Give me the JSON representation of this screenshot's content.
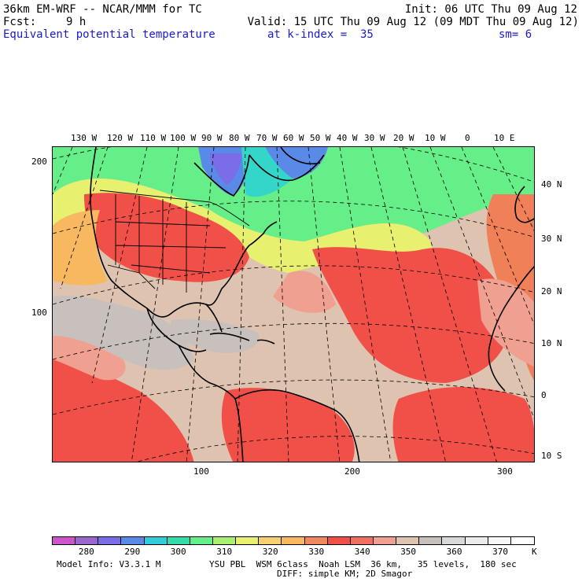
{
  "header": {
    "model": "36km EM-WRF -- NCAR/MMM for TC",
    "init": "Init: 06 UTC Thu 09 Aug 12",
    "fcst_label": "Fcst:",
    "fcst_value": "9 h",
    "valid": "Valid: 15 UTC Thu 09 Aug 12 (09 MDT Thu 09 Aug 12)",
    "field": "Equivalent potential temperature",
    "level": "at k-index =  35",
    "smoothing": "sm= 6"
  },
  "map": {
    "top_lon_labels": [
      "130 W",
      "120 W",
      "110 W",
      "100 W",
      "90 W",
      "80 W",
      "70 W",
      "60 W",
      "50 W",
      "40 W",
      "30 W",
      "20 W",
      "10 W",
      "0",
      "10 E"
    ],
    "right_lat_labels": [
      "40 N",
      "30 N",
      "20 N",
      "10 N",
      "0",
      "10 S"
    ],
    "left_grid_labels": [
      "200",
      "100"
    ],
    "bottom_grid_labels": [
      "100",
      "200",
      "300"
    ],
    "colors": {
      "cold_purple": "#7b6ce8",
      "cold_blue": "#5a8ae8",
      "teal": "#33d6c8",
      "green": "#66ee88",
      "yellow_green": "#c8f070",
      "yellow": "#f4f070",
      "orange": "#f8b860",
      "warm": "#f08058",
      "hot": "#f05048",
      "salmon": "#f0a090",
      "tan": "#dec4b0",
      "gray": "#c8c0bc"
    }
  },
  "colorbar": {
    "colors": [
      "#cc55cc",
      "#9966cc",
      "#7b6ce8",
      "#5a8ae8",
      "#33ccdd",
      "#33ddaa",
      "#66ee88",
      "#a8f070",
      "#e8f070",
      "#f8d070",
      "#f8b860",
      "#f08860",
      "#f05048",
      "#f07060",
      "#f0a090",
      "#dec4b0",
      "#c8c0bc",
      "#d8d8d8",
      "#ececec",
      "#f8f8f8",
      "#ffffff"
    ],
    "labels": [
      "280",
      "290",
      "300",
      "310",
      "320",
      "330",
      "340",
      "350",
      "360",
      "370"
    ],
    "unit": "K"
  },
  "footer": {
    "model_info": "Model Info: V3.3.1 M",
    "physics": "YSU PBL  WSM 6class  Noah LSM  36 km,   35 levels,  180 sec",
    "diffusion": "DIFF: simple KM; 2D Smagor"
  }
}
